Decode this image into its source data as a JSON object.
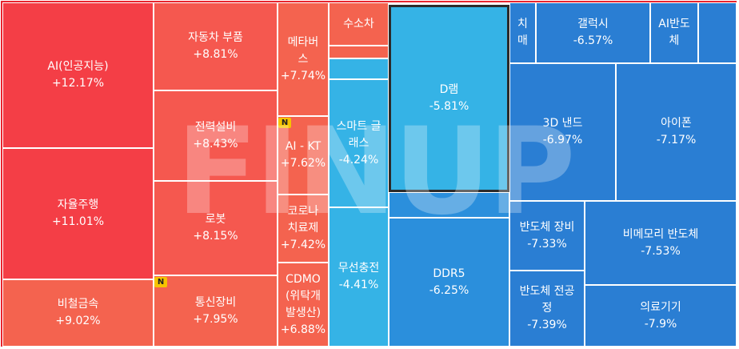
{
  "watermark": "FINUP",
  "badge_label": "N",
  "colors": {
    "frame_border": "#e8252f",
    "strong_up": "#f43e46",
    "up": "#f5584f",
    "mild_up": "#f4634f",
    "mild_down": "#35b3e6",
    "down": "#2b8fdc",
    "strong_down": "#2a7ed3"
  },
  "tiles": [
    {
      "id": "ai",
      "name": "AI(인공지능)",
      "change": "+12.17%"
    },
    {
      "id": "autonomous",
      "name": "자율주행",
      "change": "+11.01%"
    },
    {
      "id": "nonferrous",
      "name": "비철금속",
      "change": "+9.02%"
    },
    {
      "id": "auto_parts",
      "name": "자동차 부품",
      "change": "+8.81%"
    },
    {
      "id": "power",
      "name": "전력설비",
      "change": "+8.43%"
    },
    {
      "id": "robot",
      "name": "로봇",
      "change": "+8.15%"
    },
    {
      "id": "telecom_equip",
      "name": "통신장비",
      "change": "+7.95%"
    },
    {
      "id": "metaverse",
      "name": "메타버스",
      "change": "+7.74%"
    },
    {
      "id": "ai_kt",
      "name": "AI - KT",
      "change": "+7.62%"
    },
    {
      "id": "corona",
      "name": "코로나 치료제",
      "change": "+7.42%"
    },
    {
      "id": "cdmo",
      "name": "CDMO (위탁개발생산)",
      "change": "+6.88%"
    },
    {
      "id": "hydrogen_car",
      "name": "수소차",
      "change": ""
    },
    {
      "id": "smart_glasses",
      "name": "스마트 글래스",
      "change": "-4.24%"
    },
    {
      "id": "wireless_charging",
      "name": "무선충전",
      "change": "-4.41%"
    },
    {
      "id": "dram",
      "name": "D램",
      "change": "-5.81%"
    },
    {
      "id": "ddr5",
      "name": "DDR5",
      "change": "-6.25%"
    },
    {
      "id": "dementia",
      "name": "치매",
      "change": ""
    },
    {
      "id": "galaxy",
      "name": "갤럭시",
      "change": "-6.57%"
    },
    {
      "id": "ai_semi",
      "name": "AI반도체",
      "change": ""
    },
    {
      "id": "nand_3d",
      "name": "3D 낸드",
      "change": "-6.97%"
    },
    {
      "id": "iphone",
      "name": "아이폰",
      "change": "-7.17%"
    },
    {
      "id": "semi_equip",
      "name": "반도체 장비",
      "change": "-7.33%"
    },
    {
      "id": "semi_preprocess",
      "name": "반도체 전공정",
      "change": "-7.39%"
    },
    {
      "id": "nonmemory",
      "name": "비메모리 반도체",
      "change": "-7.53%"
    },
    {
      "id": "medical",
      "name": "의료기기",
      "change": "-7.9%"
    }
  ]
}
